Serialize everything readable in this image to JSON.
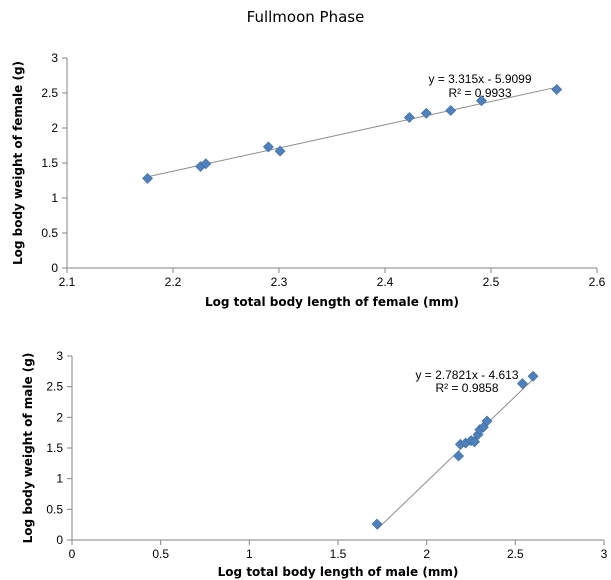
{
  "title": "Fullmoon Phase",
  "chart_data": [
    {
      "type": "scatter",
      "xlabel": "Log total body length of female (mm)",
      "ylabel": "Log  body  weight of female (g)",
      "xlim": [
        2.1,
        2.6
      ],
      "ylim": [
        0,
        3
      ],
      "xticks": [
        "2.1",
        "2.2",
        "2.3",
        "2.4",
        "2.5",
        "2.6"
      ],
      "yticks": [
        "0",
        "0.5",
        "1",
        "1.5",
        "2",
        "2.5",
        "3"
      ],
      "grid": false,
      "marker_color": "#4f81bd",
      "trendline": {
        "slope": 3.315,
        "intercept": -5.9099,
        "x_range": [
          2.175,
          2.562
        ]
      },
      "equation": "y = 3.315x - 5.9099",
      "r2": "R² = 0.9933",
      "points": [
        {
          "x": 2.176,
          "y": 1.28
        },
        {
          "x": 2.226,
          "y": 1.45
        },
        {
          "x": 2.231,
          "y": 1.49
        },
        {
          "x": 2.29,
          "y": 1.73
        },
        {
          "x": 2.301,
          "y": 1.67
        },
        {
          "x": 2.423,
          "y": 2.15
        },
        {
          "x": 2.439,
          "y": 2.21
        },
        {
          "x": 2.462,
          "y": 2.25
        },
        {
          "x": 2.491,
          "y": 2.39
        },
        {
          "x": 2.562,
          "y": 2.55
        }
      ]
    },
    {
      "type": "scatter",
      "xlabel": "Log total body length of male (mm)",
      "ylabel": "Log body weight of male (g)",
      "xlim": [
        0,
        3
      ],
      "ylim": [
        0,
        3
      ],
      "xticks": [
        "0",
        "0.5",
        "1",
        "1.5",
        "2",
        "2.5",
        "3"
      ],
      "yticks": [
        "0",
        "0.5",
        "1",
        "1.5",
        "2",
        "2.5",
        "3"
      ],
      "grid": false,
      "marker_color": "#4f81bd",
      "trendline": {
        "slope": 2.7821,
        "intercept": -4.613,
        "x_range": [
          1.72,
          2.6
        ]
      },
      "equation": "y = 2.7821x - 4.613",
      "r2": "R² = 0.9858",
      "points": [
        {
          "x": 1.72,
          "y": 0.26
        },
        {
          "x": 2.18,
          "y": 1.37
        },
        {
          "x": 2.19,
          "y": 1.56
        },
        {
          "x": 2.22,
          "y": 1.58
        },
        {
          "x": 2.25,
          "y": 1.62
        },
        {
          "x": 2.27,
          "y": 1.6
        },
        {
          "x": 2.29,
          "y": 1.72
        },
        {
          "x": 2.3,
          "y": 1.8
        },
        {
          "x": 2.32,
          "y": 1.84
        },
        {
          "x": 2.34,
          "y": 1.94
        },
        {
          "x": 2.54,
          "y": 2.55
        },
        {
          "x": 2.6,
          "y": 2.67
        }
      ]
    }
  ]
}
